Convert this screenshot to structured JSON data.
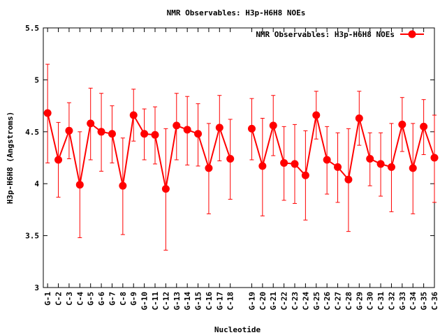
{
  "chart_data": {
    "type": "line",
    "title": "NMR Observables: H3p-H6H8 NOEs",
    "xlabel": "Nucleotide",
    "ylabel": "H3p-H6H8 (Angstroms)",
    "ylim": [
      3,
      5.5
    ],
    "yticks": [
      "3",
      "3.5",
      "4",
      "4.5",
      "5",
      "5.5"
    ],
    "grid": false,
    "legend_position": "top-right",
    "series": [
      {
        "name": "NMR Observables: H3p-H6H8 NOEs",
        "color": "#ff0000",
        "points": [
          {
            "x": 1,
            "label": "G-1",
            "y": 4.68,
            "err_low": 4.2,
            "err_high": 5.15
          },
          {
            "x": 2,
            "label": "C-2",
            "y": 4.23,
            "err_low": 3.87,
            "err_high": 4.59
          },
          {
            "x": 3,
            "label": "C-3",
            "y": 4.51,
            "err_low": 4.24,
            "err_high": 4.78
          },
          {
            "x": 4,
            "label": "C-4",
            "y": 3.99,
            "err_low": 3.48,
            "err_high": 4.5
          },
          {
            "x": 5,
            "label": "G-5",
            "y": 4.58,
            "err_low": 4.23,
            "err_high": 4.92
          },
          {
            "x": 6,
            "label": "G-6",
            "y": 4.5,
            "err_low": 4.12,
            "err_high": 4.87
          },
          {
            "x": 7,
            "label": "G-7",
            "y": 4.48,
            "err_low": 4.2,
            "err_high": 4.75
          },
          {
            "x": 8,
            "label": "C-8",
            "y": 3.98,
            "err_low": 3.51,
            "err_high": 4.44
          },
          {
            "x": 9,
            "label": "G-9",
            "y": 4.66,
            "err_low": 4.41,
            "err_high": 4.91
          },
          {
            "x": 10,
            "label": "G-10",
            "y": 4.48,
            "err_low": 4.23,
            "err_high": 4.72
          },
          {
            "x": 11,
            "label": "C-11",
            "y": 4.47,
            "err_low": 4.19,
            "err_high": 4.74
          },
          {
            "x": 12,
            "label": "C-12",
            "y": 3.95,
            "err_low": 3.36,
            "err_high": 4.53
          },
          {
            "x": 13,
            "label": "G-13",
            "y": 4.56,
            "err_low": 4.23,
            "err_high": 4.87
          },
          {
            "x": 14,
            "label": "G-14",
            "y": 4.52,
            "err_low": 4.18,
            "err_high": 4.84
          },
          {
            "x": 15,
            "label": "G-15",
            "y": 4.48,
            "err_low": 4.17,
            "err_high": 4.77
          },
          {
            "x": 16,
            "label": "C-16",
            "y": 4.15,
            "err_low": 3.71,
            "err_high": 4.58
          },
          {
            "x": 17,
            "label": "G-17",
            "y": 4.54,
            "err_low": 4.22,
            "err_high": 4.85
          },
          {
            "x": 18,
            "label": "C-18",
            "y": 4.24,
            "err_low": 3.85,
            "err_high": 4.62
          },
          {
            "x": 20,
            "label": "G-19",
            "y": 4.53,
            "err_low": 4.23,
            "err_high": 4.82
          },
          {
            "x": 21,
            "label": "C-20",
            "y": 4.17,
            "err_low": 3.69,
            "err_high": 4.63
          },
          {
            "x": 22,
            "label": "G-21",
            "y": 4.56,
            "err_low": 4.27,
            "err_high": 4.85
          },
          {
            "x": 23,
            "label": "C-22",
            "y": 4.2,
            "err_low": 3.84,
            "err_high": 4.55
          },
          {
            "x": 24,
            "label": "C-23",
            "y": 4.19,
            "err_low": 3.81,
            "err_high": 4.57
          },
          {
            "x": 25,
            "label": "C-24",
            "y": 4.08,
            "err_low": 3.65,
            "err_high": 4.51
          },
          {
            "x": 26,
            "label": "G-25",
            "y": 4.66,
            "err_low": 4.43,
            "err_high": 4.89
          },
          {
            "x": 27,
            "label": "C-26",
            "y": 4.23,
            "err_low": 3.9,
            "err_high": 4.55
          },
          {
            "x": 28,
            "label": "C-27",
            "y": 4.16,
            "err_low": 3.82,
            "err_high": 4.49
          },
          {
            "x": 29,
            "label": "C-28",
            "y": 4.04,
            "err_low": 3.54,
            "err_high": 4.53
          },
          {
            "x": 30,
            "label": "G-29",
            "y": 4.63,
            "err_low": 4.37,
            "err_high": 4.89
          },
          {
            "x": 31,
            "label": "C-30",
            "y": 4.24,
            "err_low": 3.98,
            "err_high": 4.49
          },
          {
            "x": 32,
            "label": "C-31",
            "y": 4.19,
            "err_low": 3.88,
            "err_high": 4.49
          },
          {
            "x": 33,
            "label": "C-32",
            "y": 4.16,
            "err_low": 3.73,
            "err_high": 4.58
          },
          {
            "x": 34,
            "label": "G-33",
            "y": 4.57,
            "err_low": 4.31,
            "err_high": 4.83
          },
          {
            "x": 35,
            "label": "C-34",
            "y": 4.15,
            "err_low": 3.71,
            "err_high": 4.58
          },
          {
            "x": 36,
            "label": "G-35",
            "y": 4.55,
            "err_low": 4.28,
            "err_high": 4.81
          },
          {
            "x": 37,
            "label": "C-36",
            "y": 4.25,
            "err_low": 3.82,
            "err_high": 4.66
          }
        ]
      }
    ]
  }
}
